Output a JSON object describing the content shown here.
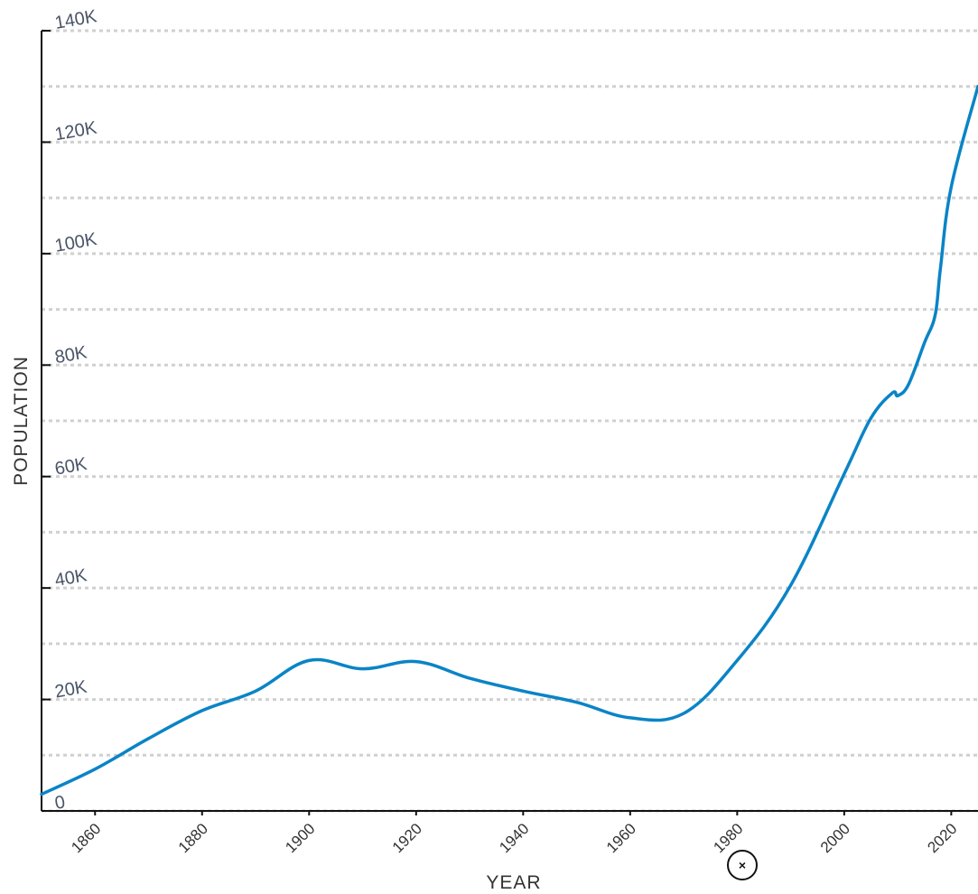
{
  "chart_data": {
    "type": "line",
    "xlabel": "YEAR",
    "ylabel": "POPULATION",
    "xlim": [
      1850,
      2025
    ],
    "ylim": [
      0,
      140000
    ],
    "x_ticks": [
      1860,
      1880,
      1900,
      1920,
      1940,
      1960,
      1980,
      2000,
      2020
    ],
    "y_ticks": [
      {
        "value": 0,
        "label": "0"
      },
      {
        "value": 20000,
        "label": "20K"
      },
      {
        "value": 40000,
        "label": "40K"
      },
      {
        "value": 60000,
        "label": "60K"
      },
      {
        "value": 80000,
        "label": "80K"
      },
      {
        "value": 100000,
        "label": "100K"
      },
      {
        "value": 120000,
        "label": "120K"
      },
      {
        "value": 140000,
        "label": "140K"
      }
    ],
    "grid_step": 10000,
    "grid": true,
    "legend": "none",
    "color": "#0a84c6",
    "series": [
      {
        "x": [
          1850,
          1860,
          1870,
          1880,
          1890,
          1900,
          1910,
          1920,
          1930,
          1940,
          1950,
          1960,
          1970,
          1980,
          1990,
          2000,
          2005,
          2009,
          2010,
          2012,
          2015,
          2017,
          2018,
          2020,
          2025
        ],
        "values": [
          3000,
          7500,
          13000,
          18000,
          21500,
          27000,
          25500,
          26800,
          23800,
          21500,
          19500,
          16700,
          17500,
          27000,
          40500,
          60500,
          70500,
          75000,
          74500,
          76500,
          84000,
          89000,
          97500,
          112000,
          130000
        ]
      }
    ]
  },
  "controls": {
    "clear_icon": "close-icon",
    "clear_symbol": "×"
  }
}
